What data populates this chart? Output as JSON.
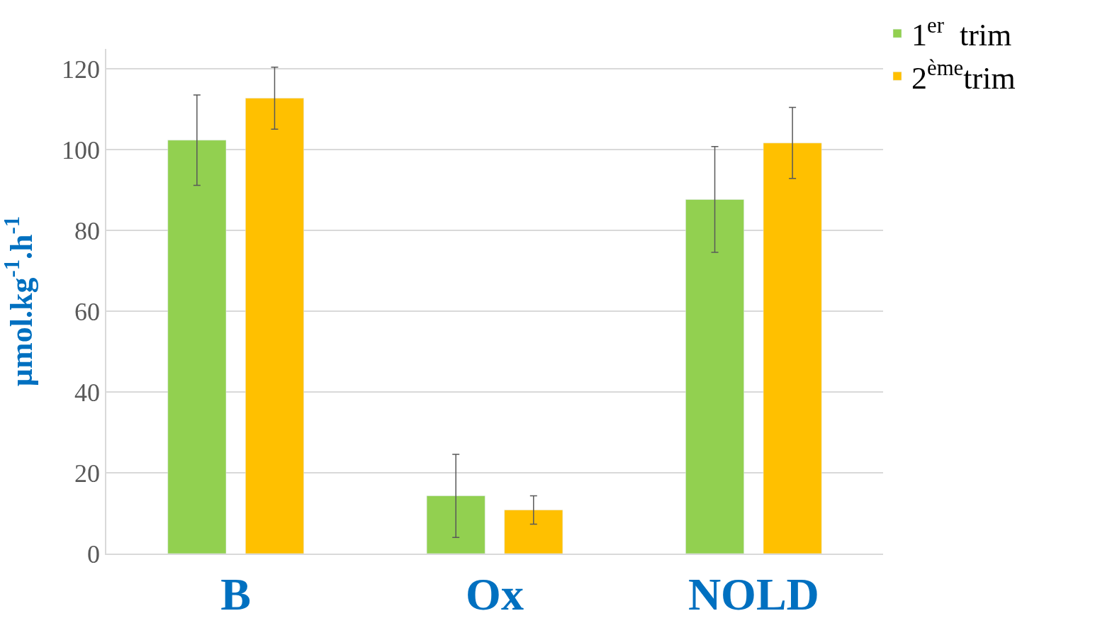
{
  "chart_data": {
    "type": "bar",
    "ylabel": "µmol.kg$^{-1}$.h$^{-1}$",
    "categories": [
      "B",
      "Ox",
      "NOLD"
    ],
    "series": [
      {
        "name": "1$^{er}$  trim",
        "color": "#92d050",
        "values": [
          102.4,
          14.3,
          87.7
        ],
        "errors": [
          11.2,
          10.3,
          13.1
        ]
      },
      {
        "name": "2$^{ème}$trim",
        "color": "#ffc000",
        "values": [
          112.8,
          10.8,
          101.7
        ],
        "errors": [
          7.7,
          3.5,
          8.8
        ]
      }
    ],
    "ylim": [
      0,
      125
    ],
    "yticks": [
      0,
      20,
      40,
      60,
      80,
      100,
      120
    ],
    "grid": "y",
    "legend": "top right"
  }
}
